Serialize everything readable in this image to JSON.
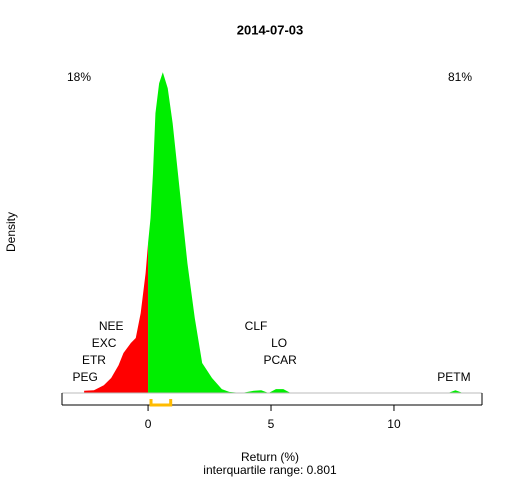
{
  "chart_data": {
    "type": "density",
    "title": "2014-07-03",
    "x_label": "Return (%)",
    "subtitle": "interquartile range: 0.801",
    "y_label": "Density",
    "left_annotation": "18%",
    "right_annotation": "81%",
    "left_color": "#cc0000",
    "right_color": "#009900",
    "negative_fill": "#ff0000",
    "positive_fill": "#00ee00",
    "iqr_color": "#ffbb00",
    "x": [
      -2.6,
      -2.2,
      -1.8,
      -1.5,
      -1.2,
      -1.0,
      -0.7,
      -0.5,
      -0.3,
      -0.1,
      0.0,
      0.1,
      0.2,
      0.3,
      0.45,
      0.6,
      0.8,
      1.0,
      1.3,
      1.6,
      1.9,
      2.2,
      2.6,
      3.0,
      3.3,
      3.8,
      4.3,
      4.6,
      4.9,
      5.2,
      5.5,
      5.8,
      12.2,
      12.5,
      12.8
    ],
    "values": [
      0.004,
      0.005,
      0.014,
      0.027,
      0.05,
      0.072,
      0.09,
      0.099,
      0.144,
      0.216,
      0.27,
      0.315,
      0.396,
      0.504,
      0.558,
      0.578,
      0.549,
      0.486,
      0.36,
      0.234,
      0.135,
      0.054,
      0.027,
      0.007,
      0.002,
      0,
      0.004,
      0.005,
      0,
      0.007,
      0.007,
      0,
      0,
      0.005,
      0
    ],
    "iqr": [
      0.12,
      0.92
    ],
    "point_labels": [
      {
        "label": "PEG",
        "x": -2.56
      },
      {
        "label": "ETR",
        "x": -2.2
      },
      {
        "label": "EXC",
        "x": -1.79
      },
      {
        "label": "NEE",
        "x": -1.5
      },
      {
        "label": "CLF",
        "x": 4.39
      },
      {
        "label": "LO",
        "x": 5.33
      },
      {
        "label": "PCAR",
        "x": 5.37
      },
      {
        "label": "PETM",
        "x": 12.44
      }
    ],
    "xlim": [
      -3.5,
      13.58
    ],
    "ylim": [
      0,
      0.6
    ],
    "xticks": [
      0,
      5,
      10
    ]
  }
}
